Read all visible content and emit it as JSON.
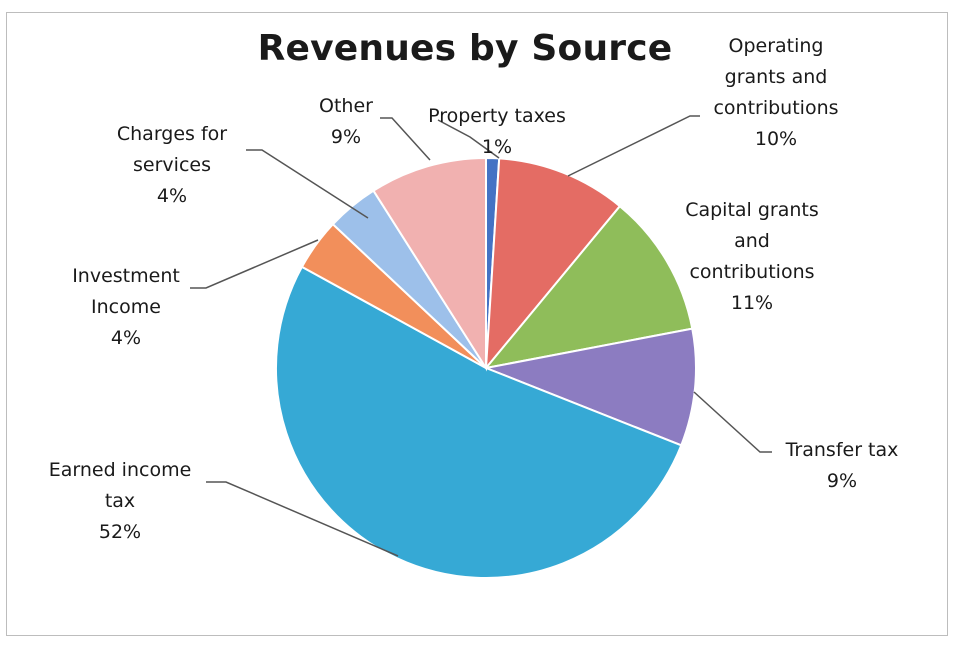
{
  "chart_data": {
    "type": "pie",
    "title": "Revenues by Source",
    "slices": [
      {
        "label": [
          "Property taxes"
        ],
        "value": 1,
        "value_label": "1%",
        "color": "#4472c4"
      },
      {
        "label": [
          "Operating",
          "grants and",
          "contributions"
        ],
        "value": 10,
        "value_label": "10%",
        "color": "#e46c64"
      },
      {
        "label": [
          "Capital grants",
          "and",
          "contributions"
        ],
        "value": 11,
        "value_label": "11%",
        "color": "#8fbd5a"
      },
      {
        "label": [
          "Transfer tax"
        ],
        "value": 9,
        "value_label": "9%",
        "color": "#8c7cc1"
      },
      {
        "label": [
          "Earned income",
          "tax"
        ],
        "value": 52,
        "value_label": "52%",
        "color": "#36a9d5"
      },
      {
        "label": [
          "Investment",
          "Income"
        ],
        "value": 4,
        "value_label": "4%",
        "color": "#f28f5b"
      },
      {
        "label": [
          "Charges for",
          "services"
        ],
        "value": 4,
        "value_label": "4%",
        "color": "#9dc0ea"
      },
      {
        "label": [
          "Other"
        ],
        "value": 9,
        "value_label": "9%",
        "color": "#f1b1b0"
      }
    ]
  }
}
